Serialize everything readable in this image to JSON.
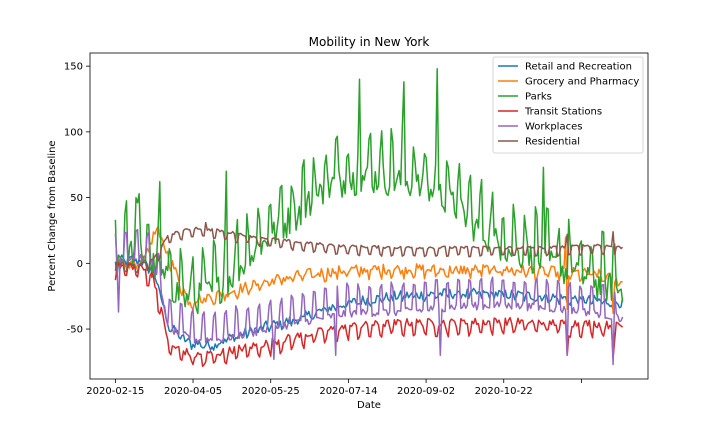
{
  "chart_data": {
    "type": "line",
    "title": "Mobility in New York",
    "xlabel": "Date",
    "ylabel": "Percent Change from Baseline",
    "x_start": "2020-02-15",
    "x_end": "2020-12-31",
    "x_ticks": [
      "2020-02-15",
      "2020-04-05",
      "2020-05-25",
      "2020-07-14",
      "2020-09-02",
      "2020-10-22",
      ""
    ],
    "ylim": [
      -88,
      160
    ],
    "y_ticks": [
      -50,
      0,
      50,
      100,
      150
    ],
    "legend_position": "top-right",
    "grid": false,
    "series": [
      {
        "name": "Retail and Recreation",
        "color": "#1f77b4",
        "anchors": [
          [
            "2020-02-15",
            2
          ],
          [
            "2020-03-01",
            3
          ],
          [
            "2020-03-10",
            -5
          ],
          [
            "2020-03-20",
            -48
          ],
          [
            "2020-04-01",
            -60
          ],
          [
            "2020-04-15",
            -62
          ],
          [
            "2020-05-01",
            -55
          ],
          [
            "2020-05-20",
            -48
          ],
          [
            "2020-06-10",
            -42
          ],
          [
            "2020-07-01",
            -33
          ],
          [
            "2020-07-20",
            -28
          ],
          [
            "2020-08-10",
            -25
          ],
          [
            "2020-09-10",
            -23
          ],
          [
            "2020-10-10",
            -23
          ],
          [
            "2020-11-10",
            -25
          ],
          [
            "2020-12-10",
            -28
          ],
          [
            "2020-12-31",
            -30
          ]
        ],
        "amplitude": 4,
        "weekend": -2,
        "spikes": [
          [
            "2020-02-16",
            -10
          ],
          [
            "2020-11-26",
            -30
          ],
          [
            "2020-12-25",
            -35
          ]
        ]
      },
      {
        "name": "Grocery and Pharmacy",
        "color": "#ff7f0e",
        "anchors": [
          [
            "2020-02-15",
            -2
          ],
          [
            "2020-03-01",
            0
          ],
          [
            "2020-03-12",
            25
          ],
          [
            "2020-03-18",
            10
          ],
          [
            "2020-04-01",
            -28
          ],
          [
            "2020-04-15",
            -25
          ],
          [
            "2020-05-01",
            -20
          ],
          [
            "2020-05-25",
            -12
          ],
          [
            "2020-06-15",
            -8
          ],
          [
            "2020-07-10",
            -5
          ],
          [
            "2020-08-15",
            -4
          ],
          [
            "2020-09-15",
            -5
          ],
          [
            "2020-10-15",
            -4
          ],
          [
            "2020-11-15",
            -6
          ],
          [
            "2020-12-15",
            -8
          ],
          [
            "2020-12-31",
            -15
          ]
        ],
        "amplitude": 4,
        "weekend": -4,
        "spikes": [
          [
            "2020-03-13",
            28
          ],
          [
            "2020-11-25",
            20
          ],
          [
            "2020-11-26",
            -35
          ],
          [
            "2020-12-25",
            -38
          ]
        ]
      },
      {
        "name": "Parks",
        "color": "#2ca02c",
        "anchors": [
          [
            "2020-02-15",
            5
          ],
          [
            "2020-03-01",
            10
          ],
          [
            "2020-03-15",
            -10
          ],
          [
            "2020-04-01",
            -30
          ],
          [
            "2020-04-20",
            -20
          ],
          [
            "2020-05-10",
            5
          ],
          [
            "2020-06-01",
            30
          ],
          [
            "2020-07-01",
            60
          ],
          [
            "2020-07-20",
            65
          ],
          [
            "2020-08-15",
            62
          ],
          [
            "2020-09-10",
            50
          ],
          [
            "2020-10-01",
            25
          ],
          [
            "2020-10-20",
            10
          ],
          [
            "2020-11-15",
            0
          ],
          [
            "2020-12-10",
            -15
          ],
          [
            "2020-12-31",
            -20
          ]
        ],
        "amplitude": 12,
        "weekend": 30,
        "spikes": [
          [
            "2020-03-01",
            53
          ],
          [
            "2020-03-14",
            62
          ],
          [
            "2020-07-18",
            140
          ],
          [
            "2020-08-15",
            138
          ],
          [
            "2020-09-05",
            148
          ],
          [
            "2020-11-11",
            73
          ],
          [
            "2020-04-25",
            70
          ]
        ]
      },
      {
        "name": "Transit Stations",
        "color": "#d62728",
        "anchors": [
          [
            "2020-02-15",
            -2
          ],
          [
            "2020-03-01",
            -2
          ],
          [
            "2020-03-10",
            -10
          ],
          [
            "2020-03-20",
            -62
          ],
          [
            "2020-04-05",
            -70
          ],
          [
            "2020-04-20",
            -68
          ],
          [
            "2020-05-15",
            -62
          ],
          [
            "2020-06-10",
            -55
          ],
          [
            "2020-07-10",
            -48
          ],
          [
            "2020-08-15",
            -45
          ],
          [
            "2020-09-15",
            -45
          ],
          [
            "2020-10-15",
            -44
          ],
          [
            "2020-11-15",
            -45
          ],
          [
            "2020-12-15",
            -46
          ],
          [
            "2020-12-31",
            -48
          ]
        ],
        "amplitude": 3,
        "weekend": -8,
        "spikes": [
          [
            "2020-04-12",
            -75
          ],
          [
            "2020-11-26",
            -70
          ],
          [
            "2020-12-25",
            -72
          ]
        ]
      },
      {
        "name": "Workplaces",
        "color": "#9467bd",
        "anchors": [
          [
            "2020-02-15",
            3
          ],
          [
            "2020-03-01",
            5
          ],
          [
            "2020-03-10",
            0
          ],
          [
            "2020-03-20",
            -50
          ],
          [
            "2020-04-05",
            -58
          ],
          [
            "2020-04-20",
            -58
          ],
          [
            "2020-05-15",
            -52
          ],
          [
            "2020-06-10",
            -45
          ],
          [
            "2020-07-10",
            -38
          ],
          [
            "2020-08-15",
            -37
          ],
          [
            "2020-09-15",
            -33
          ],
          [
            "2020-10-15",
            -32
          ],
          [
            "2020-11-15",
            -34
          ],
          [
            "2020-12-15",
            -38
          ],
          [
            "2020-12-31",
            -42
          ]
        ],
        "amplitude": 3,
        "weekend": 20,
        "spikes": [
          [
            "2020-02-17",
            -37
          ],
          [
            "2020-05-25",
            -73
          ],
          [
            "2020-07-03",
            -70
          ],
          [
            "2020-09-07",
            -70
          ],
          [
            "2020-11-26",
            -70
          ],
          [
            "2020-12-25",
            -77
          ]
        ]
      },
      {
        "name": "Residential",
        "color": "#8c564b",
        "anchors": [
          [
            "2020-02-15",
            0
          ],
          [
            "2020-03-01",
            -1
          ],
          [
            "2020-03-10",
            3
          ],
          [
            "2020-03-20",
            22
          ],
          [
            "2020-04-05",
            27
          ],
          [
            "2020-04-20",
            25
          ],
          [
            "2020-05-15",
            20
          ],
          [
            "2020-06-10",
            16
          ],
          [
            "2020-07-10",
            13
          ],
          [
            "2020-08-15",
            12
          ],
          [
            "2020-09-15",
            12
          ],
          [
            "2020-10-15",
            12
          ],
          [
            "2020-11-15",
            12
          ],
          [
            "2020-12-15",
            14
          ],
          [
            "2020-12-31",
            12
          ]
        ],
        "amplitude": 1,
        "weekend": -6,
        "spikes": [
          [
            "2020-04-12",
            31
          ],
          [
            "2020-11-26",
            22
          ],
          [
            "2020-12-25",
            24
          ]
        ]
      }
    ]
  }
}
